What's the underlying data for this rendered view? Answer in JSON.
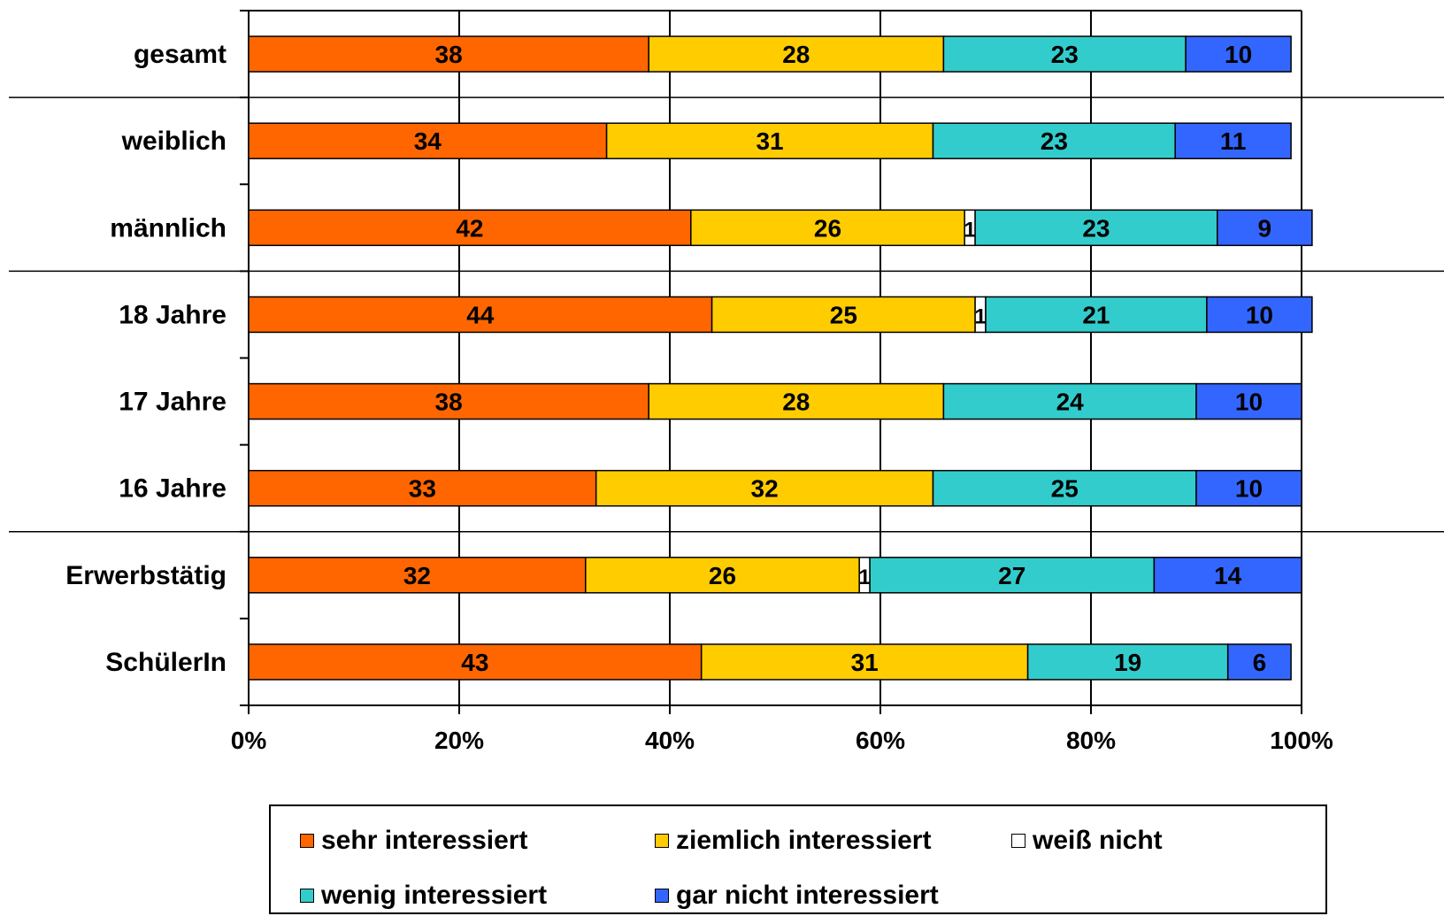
{
  "chart_data": {
    "type": "bar",
    "orientation": "horizontal",
    "stacked": true,
    "normalized_percent": true,
    "categories": [
      "gesamt",
      "weiblich",
      "männlich",
      "18 Jahre",
      "17 Jahre",
      "16 Jahre",
      "Erwerbstätig",
      "SchülerIn"
    ],
    "series": [
      {
        "name": "sehr interessiert",
        "color": "#FF6600",
        "values": [
          38,
          34,
          42,
          44,
          38,
          33,
          32,
          43
        ]
      },
      {
        "name": "ziemlich interessiert",
        "color": "#FFCC00",
        "values": [
          28,
          31,
          26,
          25,
          28,
          32,
          26,
          31
        ]
      },
      {
        "name": "weiß nicht",
        "color": "#FFFFFF",
        "values": [
          0,
          0,
          1,
          1,
          0,
          0,
          1,
          0
        ]
      },
      {
        "name": "wenig interessiert",
        "color": "#33CCCC",
        "values": [
          23,
          23,
          23,
          21,
          24,
          25,
          27,
          19
        ]
      },
      {
        "name": "gar nicht interessiert",
        "color": "#3366FF",
        "values": [
          10,
          11,
          9,
          10,
          10,
          10,
          14,
          6
        ]
      }
    ],
    "xlim": [
      0,
      100
    ],
    "x_ticks": [
      "0%",
      "20%",
      "40%",
      "60%",
      "80%",
      "100%"
    ],
    "grid": "vertical",
    "group_separators_after": [
      "gesamt",
      "männlich",
      "16 Jahre"
    ],
    "legend_position": "bottom"
  }
}
